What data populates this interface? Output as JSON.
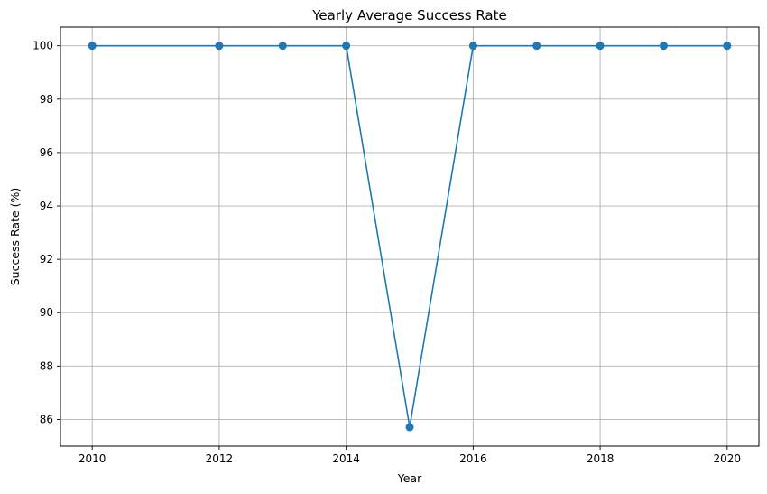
{
  "chart_data": {
    "type": "line",
    "title": "Yearly Average Success Rate",
    "xlabel": "Year",
    "ylabel": "Success Rate (%)",
    "x": [
      2010,
      2012,
      2013,
      2014,
      2015,
      2016,
      2017,
      2018,
      2019,
      2020
    ],
    "series": [
      {
        "values": [
          100,
          100,
          100,
          100,
          85.71,
          100,
          100,
          100,
          100,
          100
        ],
        "color": "#1f77b4",
        "marker": "circle"
      }
    ],
    "xticks": [
      2010,
      2012,
      2014,
      2016,
      2018,
      2020
    ],
    "yticks": [
      86,
      88,
      90,
      92,
      94,
      96,
      98,
      100
    ],
    "xlim": [
      2009.5,
      2020.5
    ],
    "ylim": [
      85.0,
      100.7
    ],
    "grid": true,
    "legend": "none"
  }
}
